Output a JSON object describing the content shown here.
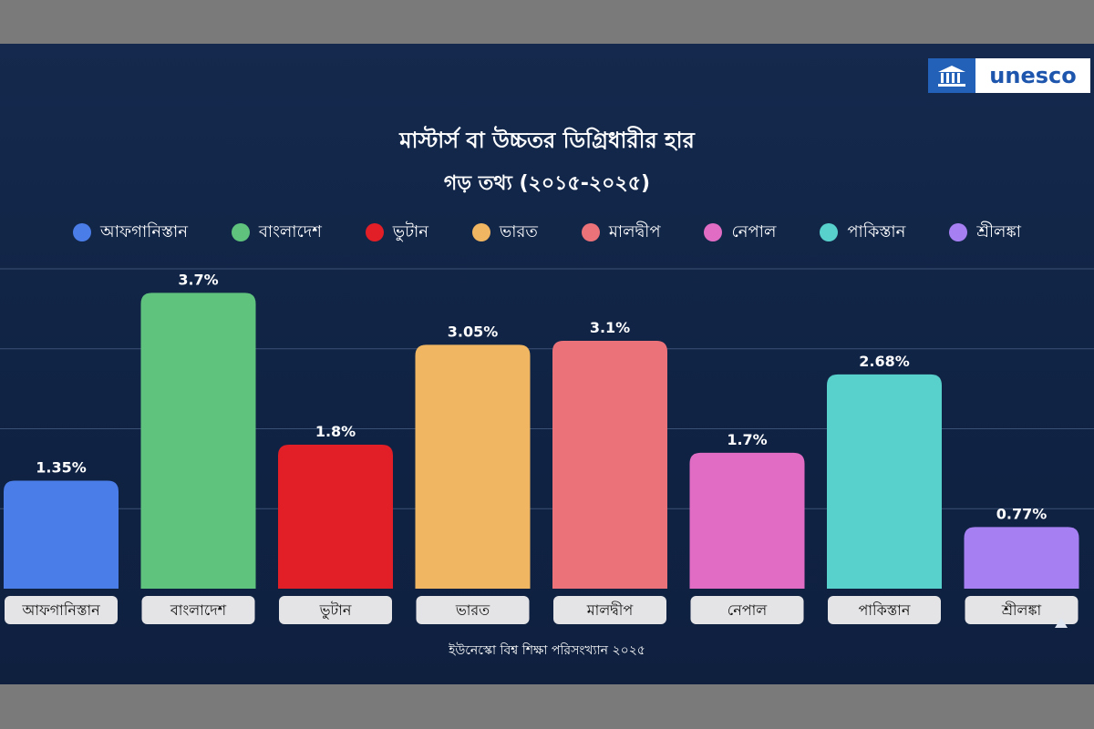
{
  "logo": {
    "text": "unesco",
    "icon": "unesco-temple-icon"
  },
  "chart_data": {
    "type": "bar",
    "title": "মাস্টার্স বা উচ্চতর ডিগ্রিধারীর হার",
    "subtitle": "গড় তথ্য (২০১৫-২০২৫)",
    "categories": [
      "আফগানিস্তান",
      "বাংলাদেশ",
      "ভুটান",
      "ভারত",
      "মালদ্বীপ",
      "নেপাল",
      "পাকিস্তান",
      "শ্রীলঙ্কা"
    ],
    "values": [
      1.35,
      3.7,
      1.8,
      3.05,
      3.1,
      1.7,
      2.68,
      0.77
    ],
    "value_labels": [
      "1.35%",
      "3.7%",
      "1.8%",
      "3.05%",
      "3.1%",
      "1.7%",
      "2.68%",
      "0.77%"
    ],
    "colors": [
      "#4a7de8",
      "#5fc27d",
      "#e21f26",
      "#f1b662",
      "#ec727a",
      "#e06cc4",
      "#58d0cc",
      "#a67ff3"
    ],
    "ylim": [
      0,
      4
    ],
    "grid": true,
    "legend": "top",
    "source": "ইউনেস্কো বিশ্ব শিক্ষা পরিসংখ্যান ২০২৫"
  }
}
